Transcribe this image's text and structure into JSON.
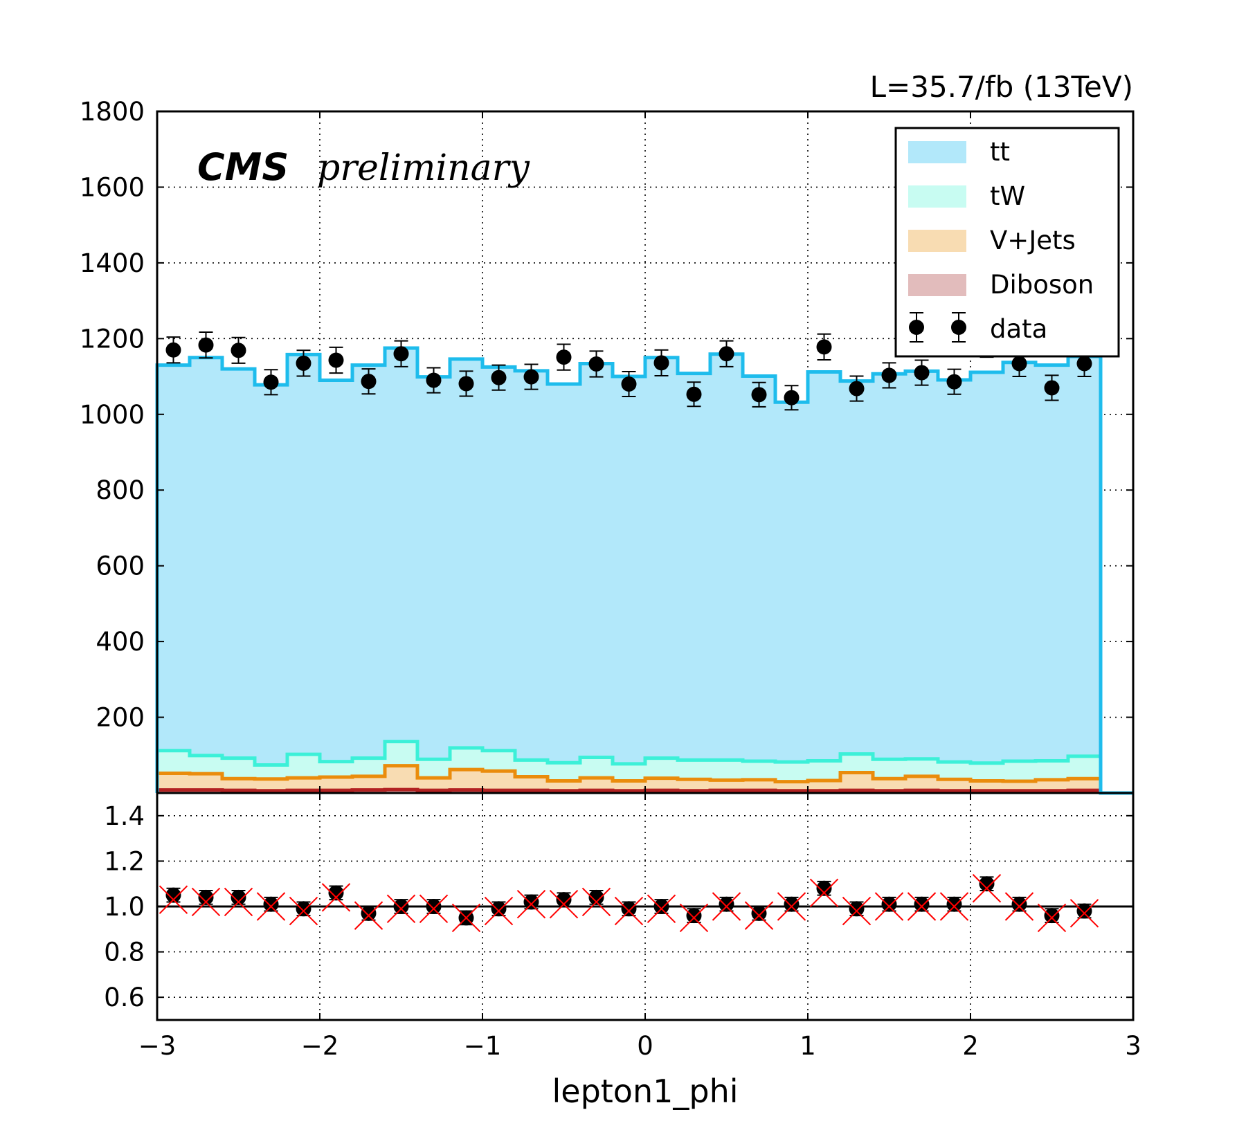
{
  "lumi_text": "L=35.7/fb (13TeV)",
  "cms_label": "CMS",
  "cms_sublabel": "preliminary",
  "chart_data": [
    {
      "type": "area",
      "panel": "main",
      "xlabel": "lepton1_phi",
      "ylabel": "",
      "xlim": [
        -3,
        3
      ],
      "ylim": [
        0,
        1800
      ],
      "yticks": [
        200,
        400,
        600,
        800,
        1000,
        1200,
        1400,
        1600,
        1800
      ],
      "grid": true,
      "legend_position": "top-right",
      "bin_edges": [
        -3.0,
        -2.8,
        -2.6,
        -2.4,
        -2.2,
        -2.0,
        -1.8,
        -1.6,
        -1.4,
        -1.2,
        -1.0,
        -0.8,
        -0.6,
        -0.4,
        -0.2,
        0.0,
        0.2,
        0.4,
        0.6,
        0.8,
        1.0,
        1.2,
        1.4,
        1.6,
        1.8,
        2.0,
        2.2,
        2.4,
        2.6,
        2.8
      ],
      "stacked": true,
      "series": [
        {
          "name": "Diboson",
          "style": "stack",
          "fill": "#e2bcbc",
          "line": "#b22222",
          "values": [
            8,
            8,
            7,
            6,
            7,
            7,
            8,
            9,
            7,
            8,
            7,
            7,
            6,
            7,
            6,
            7,
            6,
            7,
            7,
            6,
            6,
            7,
            6,
            7,
            6,
            6,
            6,
            6,
            7
          ]
        },
        {
          "name": "V+Jets",
          "style": "stack",
          "fill": "#f8dcb2",
          "line": "#ea8c0c",
          "values": [
            44,
            43,
            31,
            31,
            33,
            35,
            36,
            63,
            33,
            54,
            51,
            36,
            26,
            33,
            26,
            32,
            30,
            27,
            28,
            24,
            27,
            47,
            32,
            37,
            30,
            26,
            25,
            29,
            31
          ]
        },
        {
          "name": "tW",
          "style": "stack",
          "fill": "#c8fcf2",
          "line": "#3cf0d8",
          "values": [
            60,
            48,
            54,
            37,
            62,
            41,
            48,
            64,
            49,
            57,
            54,
            44,
            48,
            54,
            45,
            53,
            51,
            53,
            49,
            52,
            52,
            49,
            51,
            46,
            46,
            47,
            53,
            50,
            59
          ]
        },
        {
          "name": "tt",
          "style": "stack",
          "fill": "#b2e8fa",
          "line": "#1ebcec",
          "values": [
            1018,
            1051,
            1028,
            1004,
            1056,
            1007,
            1038,
            1039,
            1010,
            1027,
            1013,
            1028,
            1000,
            1040,
            1023,
            1058,
            1021,
            1072,
            1017,
            950,
            1027,
            985,
            1018,
            1024,
            1009,
            1032,
            1053,
            1045,
            1056
          ]
        },
        {
          "name": "data",
          "style": "points",
          "values": [
            1170,
            1183,
            1169,
            1085,
            1135,
            1143,
            1087,
            1160,
            1090,
            1081,
            1097,
            1099,
            1151,
            1133,
            1080,
            1136,
            1053,
            1160,
            1052,
            1044,
            1178,
            1068,
            1103,
            1110,
            1086,
            1185,
            1134,
            1070,
            1134
          ],
          "errors": [
            34,
            34,
            34,
            33,
            34,
            34,
            33,
            34,
            33,
            33,
            33,
            33,
            34,
            34,
            33,
            34,
            32,
            34,
            32,
            32,
            34,
            33,
            33,
            33,
            33,
            34,
            34,
            33,
            34
          ]
        }
      ]
    },
    {
      "type": "scatter",
      "panel": "ratio",
      "xlabel": "lepton1_phi",
      "ylabel": "",
      "xlim": [
        -3,
        3
      ],
      "ylim": [
        0.5,
        1.5
      ],
      "yticks": [
        0.6,
        0.8,
        1.0,
        1.2,
        1.4
      ],
      "xticks": [
        -3,
        -2,
        -1,
        0,
        1,
        2,
        3
      ],
      "xtick_labels": [
        "−3",
        "−2",
        "−1",
        "0",
        "1",
        "2",
        "3"
      ],
      "grid": true,
      "reference_line": 1.0,
      "x": [
        -2.9,
        -2.7,
        -2.5,
        -2.3,
        -2.1,
        -1.9,
        -1.7,
        -1.5,
        -1.3,
        -1.1,
        -0.9,
        -0.7,
        -0.5,
        -0.3,
        -0.1,
        0.1,
        0.3,
        0.5,
        0.7,
        0.9,
        1.1,
        1.3,
        1.5,
        1.7,
        1.9,
        2.1,
        2.3,
        2.5,
        2.7
      ],
      "series": [
        {
          "name": "ratio",
          "marker": "circle",
          "values": [
            1.05,
            1.04,
            1.04,
            1.01,
            0.99,
            1.06,
            0.97,
            1.0,
            1.0,
            0.95,
            0.99,
            1.02,
            1.03,
            1.04,
            0.99,
            1.0,
            0.96,
            1.01,
            0.97,
            1.01,
            1.08,
            0.99,
            1.01,
            1.01,
            1.01,
            1.1,
            1.01,
            0.96,
            0.98
          ],
          "errors": [
            0.03,
            0.03,
            0.03,
            0.03,
            0.03,
            0.03,
            0.03,
            0.03,
            0.03,
            0.03,
            0.03,
            0.03,
            0.03,
            0.03,
            0.03,
            0.03,
            0.03,
            0.03,
            0.03,
            0.03,
            0.03,
            0.03,
            0.03,
            0.03,
            0.03,
            0.03,
            0.03,
            0.03,
            0.03
          ]
        },
        {
          "name": "ratio-cross",
          "marker": "x",
          "color": "#ff0000",
          "values": [
            1.03,
            1.02,
            1.02,
            1.0,
            0.98,
            1.04,
            0.96,
            0.99,
            0.99,
            0.95,
            0.98,
            1.01,
            1.01,
            1.02,
            0.98,
            0.99,
            0.95,
            1.0,
            0.96,
            1.0,
            1.06,
            0.98,
            1.0,
            1.0,
            1.0,
            1.08,
            1.0,
            0.95,
            0.97
          ]
        }
      ]
    }
  ]
}
